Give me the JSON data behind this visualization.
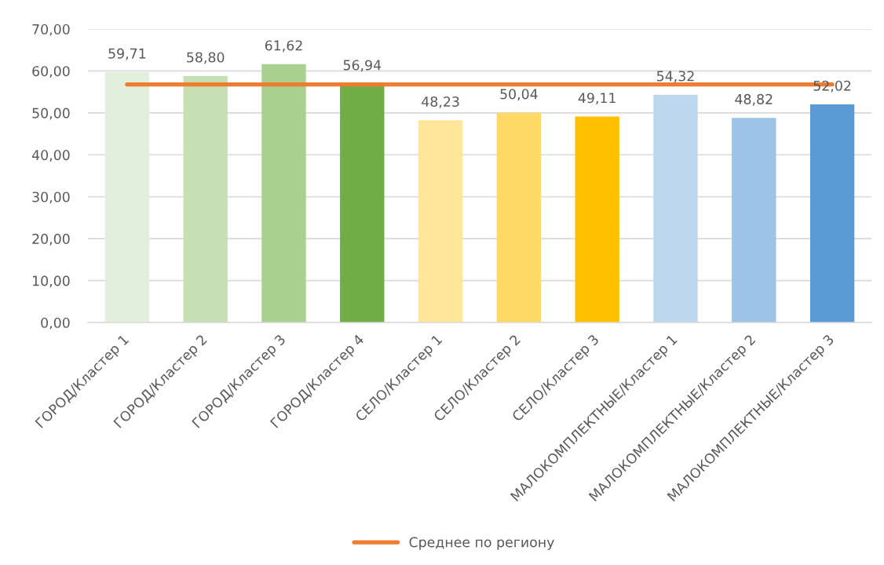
{
  "chart_data": {
    "type": "bar",
    "categories": [
      "ГОРОД/Кластер 1",
      "ГОРОД/Кластер 2",
      "ГОРОД/Кластер 3",
      "ГОРОД/Кластер 4",
      "СЕЛО/Кластер 1",
      "СЕЛО/Кластер 2",
      "СЕЛО/Кластер 3",
      "МАЛОКОМПЛЕКТНЫЕ/Кластер 1",
      "МАЛОКОМПЛЕКТНЫЕ/Кластер 2",
      "МАЛОКОМПЛЕКТНЫЕ/Кластер 3"
    ],
    "series": [
      {
        "colors": [
          "#e2efda",
          "#c6e0b4",
          "#a9d08e",
          "#70ad47",
          "#ffe699",
          "#ffd966",
          "#ffc000",
          "#bdd7ee",
          "#9dc3e6",
          "#5b9bd5"
        ],
        "values": [
          59.71,
          58.8,
          61.62,
          56.94,
          48.23,
          50.04,
          49.11,
          54.32,
          48.82,
          52.02
        ],
        "value_labels": [
          "59,71",
          "58,80",
          "61,62",
          "56,94",
          "48,23",
          "50,04",
          "49,11",
          "54,32",
          "48,82",
          "52,02"
        ]
      },
      {
        "type": "line",
        "name": "Среднее по региону",
        "color": "#ed7d31",
        "values": [
          56.8,
          56.8,
          56.8,
          56.8,
          56.8,
          56.8,
          56.8,
          56.8,
          56.8,
          56.8
        ]
      }
    ],
    "ylim": [
      0,
      70
    ],
    "yticks": [
      {
        "value": 0,
        "label": "0,00"
      },
      {
        "value": 10,
        "label": "10,00"
      },
      {
        "value": 20,
        "label": "20,00"
      },
      {
        "value": 30,
        "label": "30,00"
      },
      {
        "value": 40,
        "label": "40,00"
      },
      {
        "value": 50,
        "label": "50,00"
      },
      {
        "value": 60,
        "label": "60,00"
      },
      {
        "value": 70,
        "label": "70,00"
      }
    ],
    "grid": "y",
    "legend": "bottom"
  }
}
